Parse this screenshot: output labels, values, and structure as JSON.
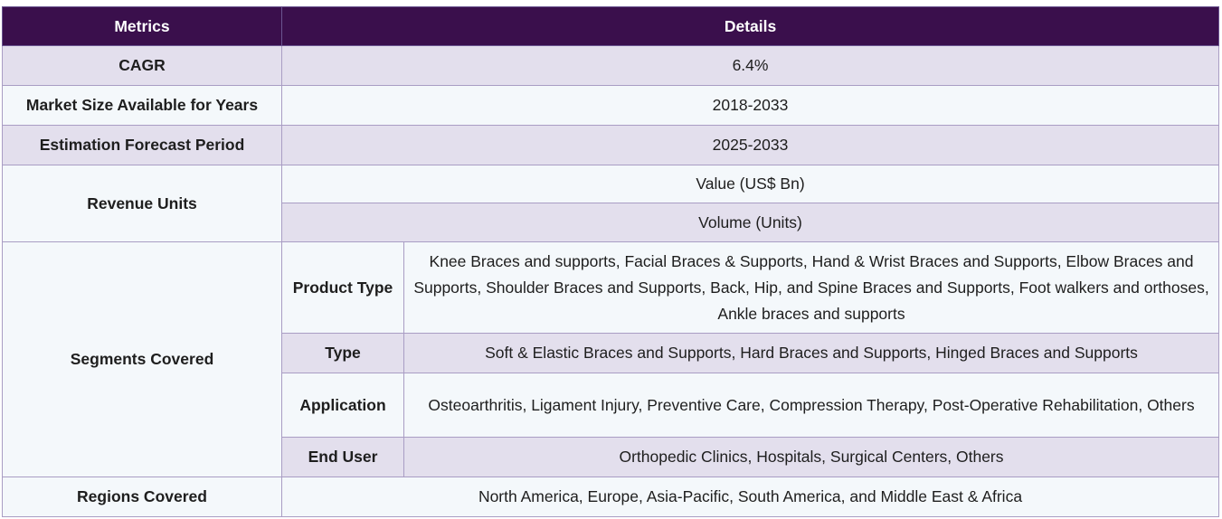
{
  "header": {
    "metrics": "Metrics",
    "details": "Details"
  },
  "rows": {
    "cagr": {
      "label": "CAGR",
      "value": "6.4%"
    },
    "market_size": {
      "label": "Market Size Available for Years",
      "value": "2018-2033"
    },
    "forecast": {
      "label": "Estimation Forecast Period",
      "value": "2025-2033"
    },
    "revenue": {
      "label": "Revenue Units",
      "value1": "Value (US$ Bn)",
      "value2": "Volume (Units)"
    },
    "segments": {
      "label": "Segments Covered",
      "product_type": {
        "label": "Product Type",
        "value": "Knee Braces and supports, Facial Braces & Supports, Hand & Wrist Braces and Supports, Elbow Braces and Supports, Shoulder Braces and Supports, Back, Hip, and Spine Braces and Supports, Foot walkers and orthoses, Ankle braces and supports"
      },
      "type": {
        "label": "Type",
        "value": "Soft & Elastic Braces and Supports, Hard Braces and Supports, Hinged Braces and Supports"
      },
      "application": {
        "label": "Application",
        "value": "Osteoarthritis, Ligament Injury, Preventive Care, Compression Therapy, Post-Operative Rehabilitation, Others"
      },
      "end_user": {
        "label": "End User",
        "value": "Orthopedic Clinics, Hospitals, Surgical Centers, Others"
      }
    },
    "regions": {
      "label": "Regions Covered",
      "value": "North America, Europe, Asia-Pacific, South America, and Middle East & Africa"
    }
  },
  "colors": {
    "header_bg": "#3a0f4c",
    "row_lavender": "#e3dfed",
    "row_pale": "#f4f8fb",
    "border": "#a99dc4"
  }
}
